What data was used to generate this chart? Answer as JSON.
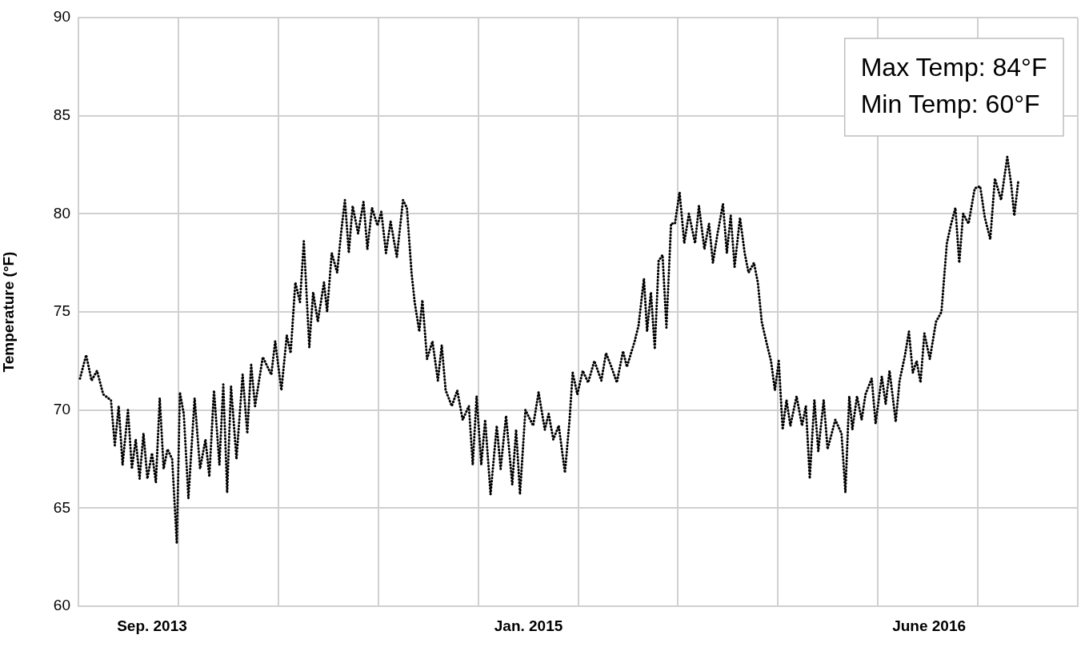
{
  "chart_data": {
    "type": "line",
    "ylabel": "Temperature (°F)",
    "annotations": [
      "Max Temp: 84°F",
      "Min Temp: 60°F"
    ],
    "xlim": [
      "2013-05-30",
      "2016-12-10"
    ],
    "xticks": [
      {
        "value": "2013-05-30",
        "label": null
      },
      {
        "value": "2013-09-02",
        "label": "Sep. 2013"
      },
      {
        "value": "2013-10-06",
        "label": null
      },
      {
        "value": "2014-02-12",
        "label": null
      },
      {
        "value": "2014-06-21",
        "label": null
      },
      {
        "value": "2014-10-28",
        "label": null
      },
      {
        "value": "2015-01-01",
        "label": "Jan. 2015"
      },
      {
        "value": "2015-03-06",
        "label": null
      },
      {
        "value": "2015-07-13",
        "label": null
      },
      {
        "value": "2015-11-19",
        "label": null
      },
      {
        "value": "2016-03-27",
        "label": null
      },
      {
        "value": "2016-06-01",
        "label": "June 2016"
      },
      {
        "value": "2016-08-03",
        "label": null
      },
      {
        "value": "2016-12-10",
        "label": null
      }
    ],
    "ylim": [
      60,
      90
    ],
    "yticks": [
      60,
      65,
      70,
      75,
      80,
      85,
      90
    ],
    "grid": true,
    "legend": false,
    "marker": "none",
    "line_style": "dotted",
    "series": [
      {
        "color": "#000000",
        "x": [
          "2013-06-01",
          "2013-06-09",
          "2013-06-16",
          "2013-06-23",
          "2013-07-01",
          "2013-07-11",
          "2013-07-16",
          "2013-07-21",
          "2013-07-26",
          "2013-08-02",
          "2013-08-07",
          "2013-08-12",
          "2013-08-17",
          "2013-08-22",
          "2013-08-27",
          "2013-09-02",
          "2013-09-07",
          "2013-09-12",
          "2013-09-17",
          "2013-09-22",
          "2013-09-28",
          "2013-10-04",
          "2013-10-08",
          "2013-10-13",
          "2013-10-19",
          "2013-10-27",
          "2013-11-03",
          "2013-11-10",
          "2013-11-15",
          "2013-11-21",
          "2013-11-28",
          "2013-12-03",
          "2013-12-08",
          "2013-12-13",
          "2013-12-20",
          "2013-12-28",
          "2014-01-03",
          "2014-01-08",
          "2014-01-13",
          "2014-01-23",
          "2014-02-03",
          "2014-02-08",
          "2014-02-16",
          "2014-02-23",
          "2014-02-28",
          "2014-03-06",
          "2014-03-12",
          "2014-03-17",
          "2014-03-24",
          "2014-03-29",
          "2014-04-04",
          "2014-04-12",
          "2014-04-16",
          "2014-04-22",
          "2014-04-29",
          "2014-05-04",
          "2014-05-09",
          "2014-05-14",
          "2014-05-19",
          "2014-05-26",
          "2014-06-02",
          "2014-06-07",
          "2014-06-13",
          "2014-06-20",
          "2014-06-25",
          "2014-07-01",
          "2014-07-07",
          "2014-07-15",
          "2014-07-23",
          "2014-07-28",
          "2014-08-03",
          "2014-08-07",
          "2014-08-13",
          "2014-08-17",
          "2014-08-23",
          "2014-08-30",
          "2014-09-06",
          "2014-09-11",
          "2014-09-16",
          "2014-09-24",
          "2014-10-01",
          "2014-10-08",
          "2014-10-16",
          "2014-10-21",
          "2014-10-26",
          "2014-11-01",
          "2014-11-06",
          "2014-11-13",
          "2014-11-21",
          "2014-11-26",
          "2014-12-03",
          "2014-12-11",
          "2014-12-16",
          "2014-12-21",
          "2014-12-28",
          "2015-01-07",
          "2015-01-14",
          "2015-01-22",
          "2015-01-27",
          "2015-02-02",
          "2015-02-09",
          "2015-02-17",
          "2015-02-23",
          "2015-02-27",
          "2015-03-05",
          "2015-03-12",
          "2015-03-19",
          "2015-03-27",
          "2015-04-05",
          "2015-04-11",
          "2015-04-18",
          "2015-04-25",
          "2015-05-03",
          "2015-05-08",
          "2015-05-18",
          "2015-05-23",
          "2015-05-30",
          "2015-06-03",
          "2015-06-08",
          "2015-06-13",
          "2015-06-18",
          "2015-06-23",
          "2015-06-28",
          "2015-07-04",
          "2015-07-09",
          "2015-07-15",
          "2015-07-21",
          "2015-07-27",
          "2015-08-04",
          "2015-08-09",
          "2015-08-16",
          "2015-08-22",
          "2015-08-27",
          "2015-09-02",
          "2015-09-09",
          "2015-09-14",
          "2015-09-19",
          "2015-09-24",
          "2015-10-01",
          "2015-10-07",
          "2015-10-12",
          "2015-10-19",
          "2015-10-24",
          "2015-10-29",
          "2015-11-05",
          "2015-11-10",
          "2015-11-15",
          "2015-11-20",
          "2015-11-25",
          "2015-11-30",
          "2015-12-05",
          "2015-12-13",
          "2015-12-20",
          "2015-12-25",
          "2015-12-30",
          "2016-01-05",
          "2016-01-10",
          "2016-01-17",
          "2016-01-22",
          "2016-02-01",
          "2016-02-09",
          "2016-02-14",
          "2016-02-19",
          "2016-02-23",
          "2016-02-29",
          "2016-03-06",
          "2016-03-11",
          "2016-03-19",
          "2016-03-24",
          "2016-04-01",
          "2016-04-06",
          "2016-04-11",
          "2016-04-19",
          "2016-04-24",
          "2016-05-01",
          "2016-05-06",
          "2016-05-11",
          "2016-05-16",
          "2016-05-21",
          "2016-05-26",
          "2016-06-02",
          "2016-06-10",
          "2016-06-17",
          "2016-06-24",
          "2016-06-29",
          "2016-07-05",
          "2016-07-10",
          "2016-07-15",
          "2016-07-22",
          "2016-07-30",
          "2016-08-06",
          "2016-08-12",
          "2016-08-19",
          "2016-08-25",
          "2016-09-02",
          "2016-09-10",
          "2016-09-15",
          "2016-09-19",
          "2016-09-24"
        ],
        "values": [
          71.6,
          72.8,
          71.5,
          72.0,
          70.8,
          70.5,
          68.2,
          70.2,
          67.2,
          70.0,
          67.0,
          68.5,
          66.5,
          68.8,
          66.5,
          67.8,
          66.3,
          70.6,
          67.0,
          68.0,
          67.5,
          63.2,
          70.9,
          69.8,
          65.5,
          70.6,
          67.0,
          68.5,
          66.6,
          71.0,
          67.2,
          71.3,
          65.8,
          71.2,
          67.5,
          71.8,
          68.8,
          72.3,
          70.2,
          72.7,
          71.8,
          73.5,
          71.0,
          73.8,
          72.9,
          76.5,
          75.5,
          78.6,
          73.2,
          76.0,
          74.5,
          76.5,
          75.0,
          78.0,
          77.0,
          79.0,
          80.7,
          78.0,
          80.4,
          79.0,
          80.6,
          78.2,
          80.3,
          79.4,
          80.1,
          78.0,
          79.6,
          77.8,
          80.7,
          80.3,
          77.0,
          75.5,
          74.0,
          75.6,
          72.6,
          73.5,
          71.5,
          73.3,
          71.0,
          70.2,
          71.0,
          69.5,
          70.2,
          67.2,
          70.7,
          67.2,
          69.5,
          65.7,
          69.2,
          67.0,
          69.7,
          66.2,
          69.0,
          65.7,
          70.0,
          69.2,
          70.9,
          69.0,
          69.8,
          68.5,
          69.2,
          66.8,
          69.5,
          71.9,
          70.8,
          72.0,
          71.4,
          72.5,
          71.5,
          72.9,
          72.2,
          71.4,
          73.0,
          72.2,
          73.5,
          74.3,
          76.7,
          74.0,
          76.0,
          73.1,
          77.6,
          77.9,
          74.2,
          79.5,
          79.5,
          81.1,
          78.5,
          80.0,
          78.5,
          80.4,
          78.2,
          79.5,
          77.5,
          79.0,
          80.5,
          78.0,
          79.9,
          77.3,
          79.8,
          78.0,
          77.0,
          77.5,
          76.5,
          74.5,
          73.3,
          72.5,
          71.0,
          72.5,
          69.0,
          70.5,
          69.2,
          70.7,
          69.2,
          70.2,
          66.5,
          70.5,
          67.9,
          70.5,
          68.0,
          69.5,
          68.8,
          65.8,
          70.7,
          69.0,
          70.7,
          69.5,
          70.8,
          71.6,
          69.3,
          71.7,
          70.3,
          72.0,
          69.4,
          71.5,
          72.8,
          74.0,
          71.9,
          72.5,
          71.4,
          73.9,
          72.6,
          74.5,
          75.0,
          78.5,
          79.4,
          80.3,
          77.5,
          80.0,
          79.5,
          81.3,
          81.4,
          79.8,
          78.7,
          81.8,
          80.7,
          82.9,
          81.5,
          79.9,
          81.6
        ]
      }
    ]
  }
}
